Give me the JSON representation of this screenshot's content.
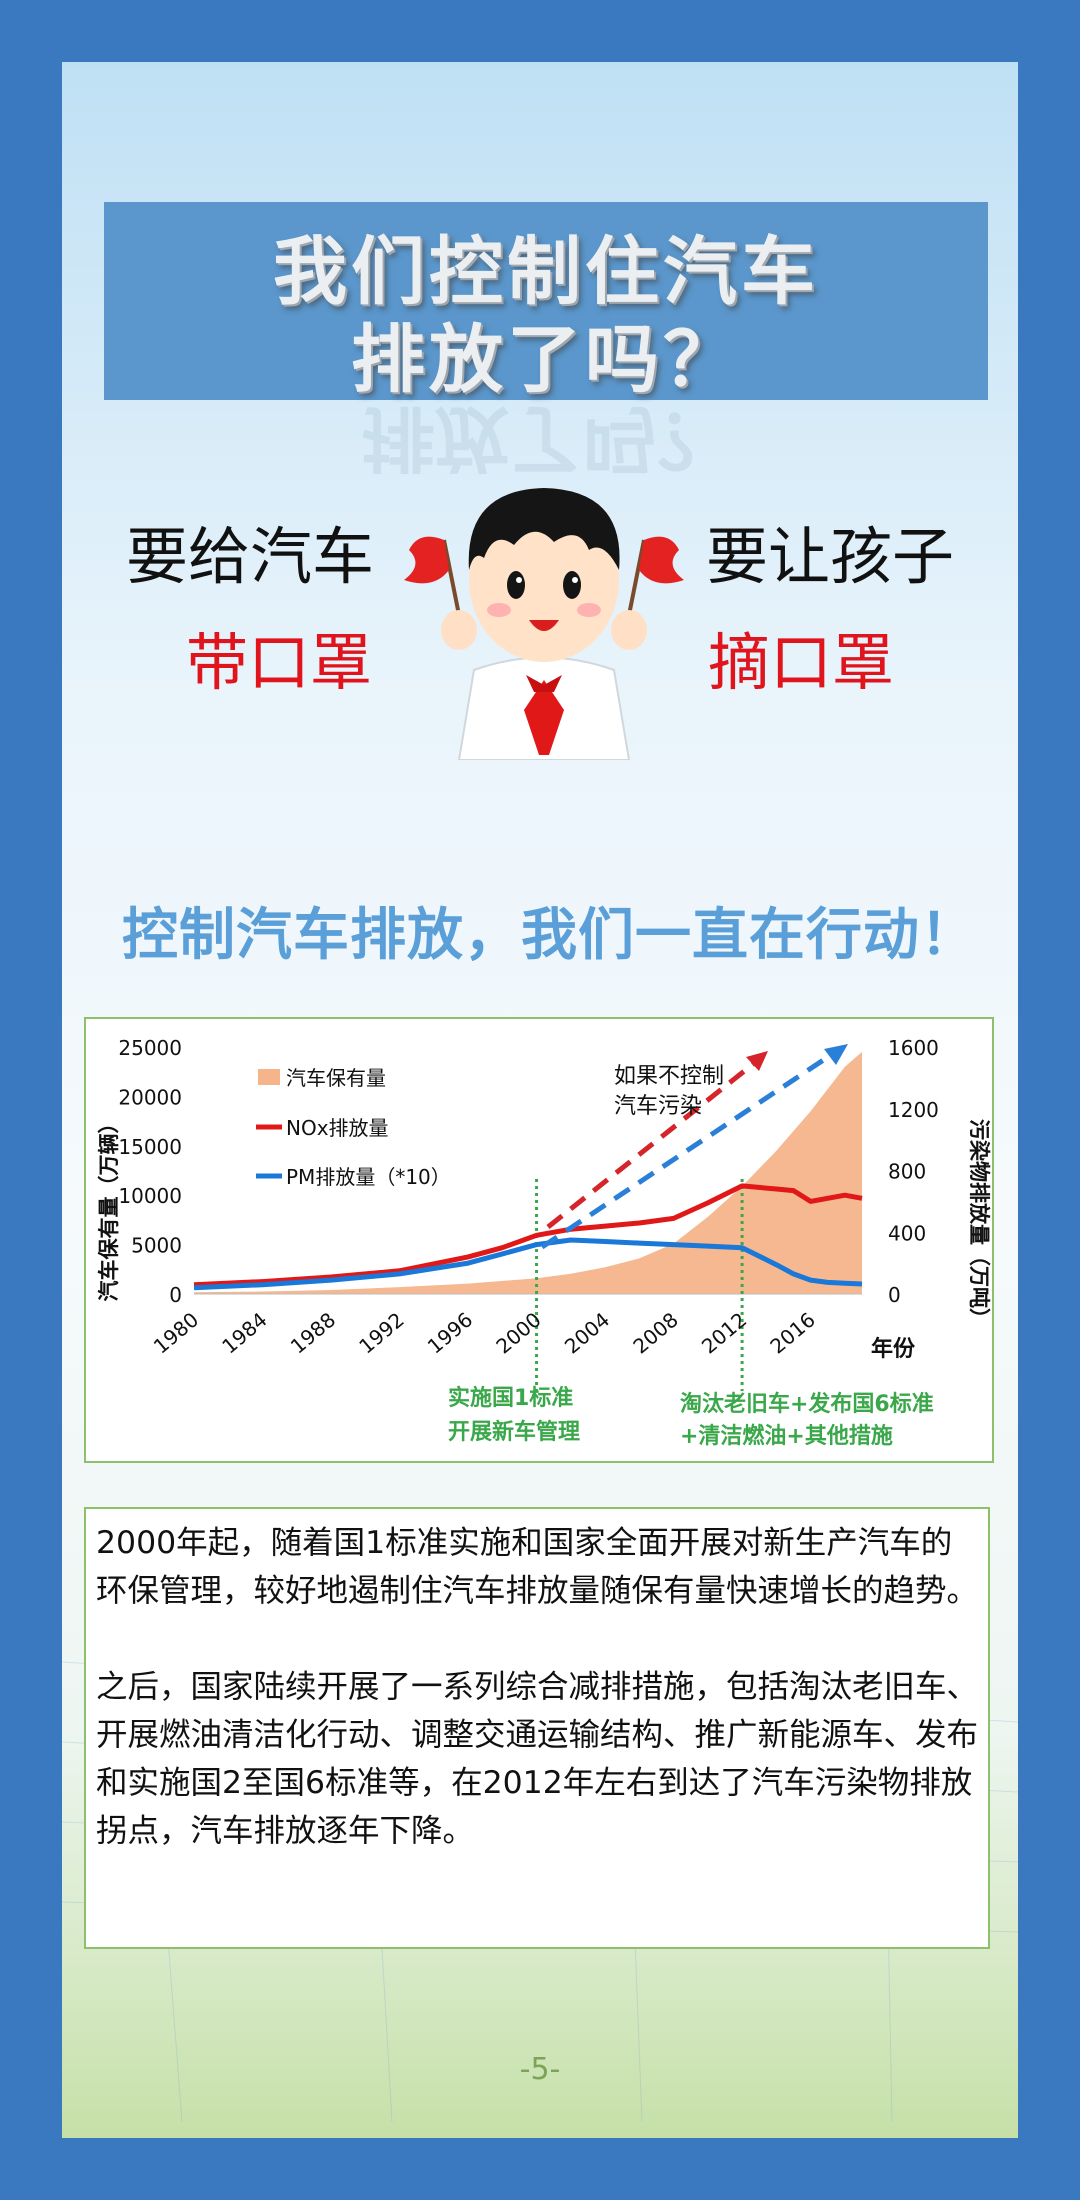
{
  "title": {
    "line1": "我们控制住汽车",
    "line2": "排放了吗？"
  },
  "slogans": {
    "left_top": "要给汽车",
    "left_bottom": "带口罩",
    "right_top": "要让孩子",
    "right_bottom": "摘口罩"
  },
  "subtitle": "控制汽车排放，我们一直在行动！",
  "chart": {
    "left_axis_label": "汽车保有量（万辆）",
    "right_axis_label": "污染物排放量（万吨）",
    "x_axis_label": "年份",
    "annotation_uncontrolled": [
      "如果不控制",
      "汽车污染"
    ],
    "annotation_2000": [
      "实施国1标准",
      "开展新车管理"
    ],
    "annotation_2012": [
      "淘汰老旧车+发布国6标准",
      "+清洁燃油+其他措施"
    ]
  },
  "chart_data": {
    "type": "line",
    "title": "",
    "xlabel": "年份",
    "ylabel": "汽车保有量（万辆）",
    "y2label": "污染物排放量（万吨）",
    "xlim": [
      1980,
      2019
    ],
    "ylim": [
      0,
      25000
    ],
    "y2lim": [
      0,
      1600
    ],
    "x_ticks": [
      "1980",
      "1984",
      "1988",
      "1992",
      "1996",
      "2000",
      "2004",
      "2008",
      "2012",
      "2016"
    ],
    "y_ticks": [
      "0",
      "5000",
      "10000",
      "15000",
      "20000",
      "25000"
    ],
    "y2_ticks": [
      "0",
      "400",
      "800",
      "1200",
      "1600"
    ],
    "legend_position": "top-left",
    "grid": false,
    "series": [
      {
        "name": "汽车保有量",
        "type": "area",
        "axis": "left",
        "color": "#f5b48a",
        "x": [
          1980,
          1984,
          1988,
          1992,
          1996,
          2000,
          2002,
          2004,
          2006,
          2008,
          2010,
          2012,
          2014,
          2016,
          2018,
          2019
        ],
        "values": [
          180,
          250,
          400,
          700,
          1050,
          1600,
          2050,
          2700,
          3600,
          5100,
          7800,
          10900,
          14500,
          18500,
          23000,
          24500
        ]
      },
      {
        "name": "NOx排放量",
        "type": "line",
        "axis": "right",
        "color": "#e01818",
        "x": [
          1980,
          1984,
          1988,
          1992,
          1996,
          1998,
          2000,
          2002,
          2004,
          2006,
          2008,
          2010,
          2012,
          2014,
          2015,
          2016,
          2017,
          2018,
          2019
        ],
        "values": [
          60,
          80,
          110,
          150,
          240,
          300,
          380,
          420,
          440,
          460,
          490,
          590,
          700,
          680,
          670,
          600,
          620,
          640,
          620
        ]
      },
      {
        "name": "PM排放量（*10）",
        "type": "line",
        "axis": "right",
        "color": "#1a78d8",
        "x": [
          1980,
          1984,
          1988,
          1992,
          1996,
          1998,
          2000,
          2002,
          2004,
          2006,
          2008,
          2010,
          2012,
          2014,
          2015,
          2016,
          2017,
          2018,
          2019
        ],
        "values": [
          40,
          60,
          90,
          130,
          200,
          260,
          320,
          350,
          340,
          330,
          320,
          310,
          300,
          190,
          130,
          90,
          75,
          70,
          65
        ]
      }
    ],
    "markers": [
      {
        "x": 2000,
        "label": "实施国1标准 开展新车管理"
      },
      {
        "x": 2012,
        "label": "淘汰老旧车+发布国6标准 +清洁燃油+其他措施"
      }
    ],
    "colors": {
      "area": "#f5b48a",
      "nox": "#e01818",
      "pm": "#1a78d8",
      "marker": "#3aa84a",
      "annotation_green": "#3aa84a"
    }
  },
  "body": {
    "paragraph1": "2000年起，随着国1标准实施和国家全面开展对新生产汽车的环保管理，较好地遏制住汽车排放量随保有量快速增长的趋势。",
    "paragraph2": "之后，国家陆续开展了一系列综合减排措施，包括淘汰老旧车、开展燃油清洁化行动、调整交通运输结构、推广新能源车、发布和实施国2至国6标准等，在2012年左右到达了汽车污染物排放拐点，汽车排放逐年下降。"
  },
  "page_number": "-5-"
}
